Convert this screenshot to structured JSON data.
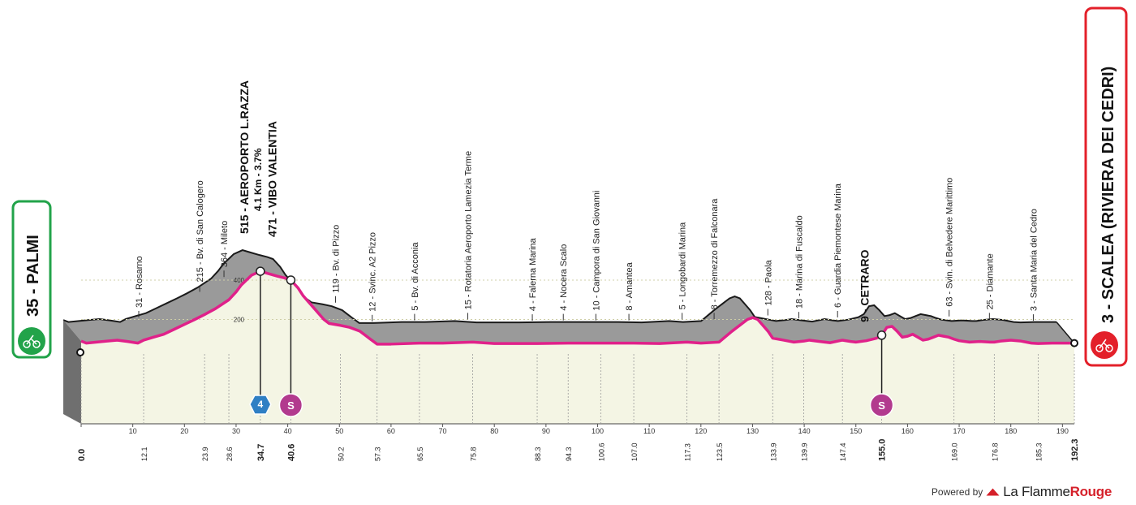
{
  "chart_data": {
    "type": "area",
    "xlim": [
      0,
      192.3
    ],
    "ylim": [
      0,
      500
    ],
    "y_ticks": [
      200,
      400
    ],
    "x_ticks": [
      0,
      10,
      20,
      30,
      40,
      50,
      60,
      70,
      80,
      90,
      100,
      110,
      120,
      130,
      140,
      150,
      160,
      170,
      180,
      190
    ],
    "km_marks": [
      {
        "label": "0.0",
        "x": 0,
        "bold": true
      },
      {
        "label": "12.1",
        "x": 12.1
      },
      {
        "label": "23.9",
        "x": 23.9
      },
      {
        "label": "28.6",
        "x": 28.6
      },
      {
        "label": "34.7",
        "x": 34.7,
        "bold": true
      },
      {
        "label": "40.6",
        "x": 40.6,
        "bold": true
      },
      {
        "label": "50.2",
        "x": 50.2
      },
      {
        "label": "57.3",
        "x": 57.3
      },
      {
        "label": "65.5",
        "x": 65.5
      },
      {
        "label": "75.8",
        "x": 75.8
      },
      {
        "label": "88.3",
        "x": 88.3
      },
      {
        "label": "94.3",
        "x": 94.3
      },
      {
        "label": "100.6",
        "x": 100.6
      },
      {
        "label": "107.0",
        "x": 107.0
      },
      {
        "label": "117.3",
        "x": 117.3
      },
      {
        "label": "123.5",
        "x": 123.5
      },
      {
        "label": "133.9",
        "x": 133.9
      },
      {
        "label": "139.9",
        "x": 139.9
      },
      {
        "label": "147.4",
        "x": 147.4
      },
      {
        "label": "155.0",
        "x": 155.0,
        "bold": true
      },
      {
        "label": "169.0",
        "x": 169.0
      },
      {
        "label": "176.8",
        "x": 176.8
      },
      {
        "label": "185.3",
        "x": 185.3
      },
      {
        "label": "192.3",
        "x": 192.3,
        "bold": true
      }
    ],
    "elevation_profile": {
      "x": [
        0,
        1,
        3,
        5,
        7,
        9,
        11,
        12.1,
        14,
        16,
        18,
        20,
        22,
        23.9,
        26,
        28.6,
        30,
        31,
        32,
        33,
        34.7,
        36,
        38,
        39.5,
        40.6,
        42,
        43,
        44,
        45,
        46,
        47,
        48,
        50.2,
        52,
        54,
        55,
        56,
        57.3,
        60,
        65.5,
        70,
        75.8,
        80,
        88.3,
        94.3,
        100.6,
        107,
        112,
        117.3,
        120,
        123.5,
        126,
        128,
        129,
        130,
        131,
        132,
        133,
        133.9,
        135,
        136,
        137,
        138,
        139.9,
        141,
        143,
        145,
        147.4,
        149,
        150,
        152,
        154,
        155,
        156,
        157,
        158,
        159,
        160,
        161,
        162,
        163,
        164,
        165,
        166,
        167,
        168,
        169,
        170,
        172,
        174,
        176,
        176.8,
        178,
        180,
        182,
        183,
        184,
        185.3,
        188,
        190,
        192.3
      ],
      "y": [
        90,
        80,
        85,
        90,
        95,
        88,
        80,
        95,
        110,
        125,
        150,
        175,
        200,
        225,
        255,
        300,
        340,
        375,
        400,
        425,
        445,
        435,
        420,
        410,
        400,
        360,
        320,
        290,
        260,
        230,
        200,
        180,
        170,
        160,
        140,
        120,
        100,
        75,
        75,
        80,
        80,
        85,
        78,
        78,
        80,
        80,
        80,
        78,
        85,
        80,
        85,
        140,
        180,
        200,
        210,
        200,
        170,
        140,
        105,
        100,
        95,
        90,
        85,
        90,
        95,
        88,
        82,
        95,
        88,
        85,
        92,
        105,
        120,
        160,
        165,
        140,
        110,
        115,
        125,
        110,
        95,
        100,
        110,
        120,
        115,
        110,
        100,
        92,
        85,
        88,
        85,
        85,
        90,
        95,
        90,
        85,
        80,
        78,
        80,
        80,
        80
      ]
    },
    "climb": {
      "label": "515 - AEROPORTO L.RAZZA",
      "detail": "4.1 Km - 3.7%",
      "category": "4",
      "x": 34.7
    },
    "sprints": [
      {
        "label": "471 - VIBO VALENTIA",
        "x": 40.6,
        "symbol": "S"
      },
      {
        "label": "9 - CETRARO",
        "x": 155.0,
        "symbol": "S"
      }
    ],
    "start": {
      "label": "35 - PALMI",
      "x": 0
    },
    "finish": {
      "label": "3 - SCALEA (RIVIERA DEI CEDRI)",
      "x": 192.3
    },
    "waypoints": [
      {
        "label": "31 - Rosarno",
        "x": 12.1
      },
      {
        "label": "215 - Bv. di San Calogero",
        "x": 23.9
      },
      {
        "label": "364 - Mileto",
        "x": 28.6
      },
      {
        "label": "119 - Bv. di Pizzo",
        "x": 50.2
      },
      {
        "label": "12 - Svinc. A2 Pizzo",
        "x": 57.3
      },
      {
        "label": "5 - Bv. di Acconia",
        "x": 65.5
      },
      {
        "label": "15 - Rotatoria Aeroporto Lamezia Terme",
        "x": 75.8
      },
      {
        "label": "4 - Falerna Marina",
        "x": 88.3
      },
      {
        "label": "4 - Nocera Scalo",
        "x": 94.3
      },
      {
        "label": "10 - Campora di San Giovanni",
        "x": 100.6
      },
      {
        "label": "8 - Amantea",
        "x": 107.0
      },
      {
        "label": "5 - Longobardi Marina",
        "x": 117.3
      },
      {
        "label": "8 - Torremezzo di Falconara",
        "x": 123.5
      },
      {
        "label": "128 - Paola",
        "x": 133.9
      },
      {
        "label": "18 - Marina di Fuscaldo",
        "x": 139.9
      },
      {
        "label": "6 - Guardia Piemontese Marina",
        "x": 147.4
      },
      {
        "label": "63 - Svin. di Belvedere Marittimo",
        "x": 169.0
      },
      {
        "label": "25 - Diamante",
        "x": 176.8
      },
      {
        "label": "3 - Santa Maria del Cedro",
        "x": 185.3
      }
    ],
    "colors": {
      "profile": "#e0218a",
      "relief": "#9a9a9a",
      "ground": "#f4f5e4",
      "start": "#22a34a",
      "finish": "#e3202a",
      "climb_badge": "#2f7fc4",
      "sprint_badge": "#b23a8e"
    }
  },
  "credit": {
    "powered_by": "Powered by",
    "brand_a": "La Flamme",
    "brand_b": "Rouge"
  }
}
